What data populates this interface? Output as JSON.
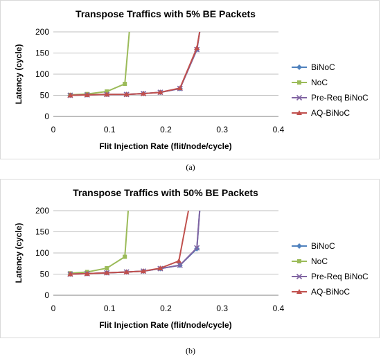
{
  "chart_data": [
    {
      "type": "line",
      "title": "Transpose Traffics with 5% BE Packets",
      "xlabel": "Flit Injection Rate (flit/node/cycle)",
      "ylabel": "Latency (cycle)",
      "xlim": [
        0,
        0.4
      ],
      "ylim": [
        0,
        200
      ],
      "xticks": [
        "0",
        "0.1",
        "0.2",
        "0.3",
        "0.4"
      ],
      "yticks": [
        "0",
        "50",
        "100",
        "150",
        "200"
      ],
      "grid": "horizontal",
      "legend": "right",
      "series": [
        {
          "name": "BiNoC",
          "color": "#4f81bd",
          "marker": "diamond",
          "x": [
            0.03,
            0.06,
            0.095,
            0.13,
            0.16,
            0.19,
            0.225,
            0.255,
            0.26
          ],
          "y": [
            50,
            51,
            52,
            52,
            54,
            57,
            66,
            158,
            200
          ]
        },
        {
          "name": "NoC",
          "color": "#9bbb59",
          "marker": "square",
          "x": [
            0.03,
            0.06,
            0.095,
            0.127,
            0.135
          ],
          "y": [
            51,
            53,
            59,
            77,
            200
          ]
        },
        {
          "name": "Pre-Req BiNoC",
          "color": "#8064a2",
          "marker": "x",
          "x": [
            0.03,
            0.06,
            0.095,
            0.13,
            0.16,
            0.19,
            0.225,
            0.255,
            0.26
          ],
          "y": [
            50,
            51,
            52,
            52,
            54,
            57,
            66,
            158,
            200
          ]
        },
        {
          "name": "AQ-BiNoC",
          "color": "#c0504d",
          "marker": "triangle",
          "x": [
            0.03,
            0.06,
            0.095,
            0.13,
            0.16,
            0.19,
            0.225,
            0.255,
            0.26
          ],
          "y": [
            50,
            51,
            52,
            52,
            54,
            57,
            67,
            162,
            200
          ]
        }
      ]
    },
    {
      "type": "line",
      "title": "Transpose Traffics with 50% BE Packets",
      "xlabel": "Flit Injection Rate (flit/node/cycle)",
      "ylabel": "Latency (cycle)",
      "xlim": [
        0,
        0.4
      ],
      "ylim": [
        0,
        200
      ],
      "xticks": [
        "0",
        "0.1",
        "0.2",
        "0.3",
        "0.4"
      ],
      "yticks": [
        "0",
        "50",
        "100",
        "150",
        "200"
      ],
      "grid": "horizontal",
      "legend": "right",
      "series": [
        {
          "name": "BiNoC",
          "color": "#4f81bd",
          "marker": "diamond",
          "x": [
            0.03,
            0.06,
            0.095,
            0.13,
            0.16,
            0.19,
            0.225,
            0.255,
            0.26
          ],
          "y": [
            50,
            51,
            53,
            55,
            57,
            63,
            71,
            110,
            200
          ]
        },
        {
          "name": "NoC",
          "color": "#9bbb59",
          "marker": "square",
          "x": [
            0.03,
            0.06,
            0.095,
            0.127,
            0.133
          ],
          "y": [
            52,
            55,
            64,
            91,
            200
          ]
        },
        {
          "name": "Pre-Req BiNoC",
          "color": "#8064a2",
          "marker": "x",
          "x": [
            0.03,
            0.06,
            0.095,
            0.13,
            0.16,
            0.19,
            0.225,
            0.255,
            0.26
          ],
          "y": [
            50,
            51,
            53,
            55,
            57,
            63,
            71,
            112,
            200
          ]
        },
        {
          "name": "AQ-BiNoC",
          "color": "#c0504d",
          "marker": "triangle",
          "x": [
            0.03,
            0.06,
            0.095,
            0.13,
            0.16,
            0.19,
            0.223,
            0.24
          ],
          "y": [
            50,
            51,
            53,
            55,
            57,
            64,
            81,
            200
          ]
        }
      ]
    }
  ],
  "captions": {
    "a": "(a)",
    "b": "(b)"
  }
}
